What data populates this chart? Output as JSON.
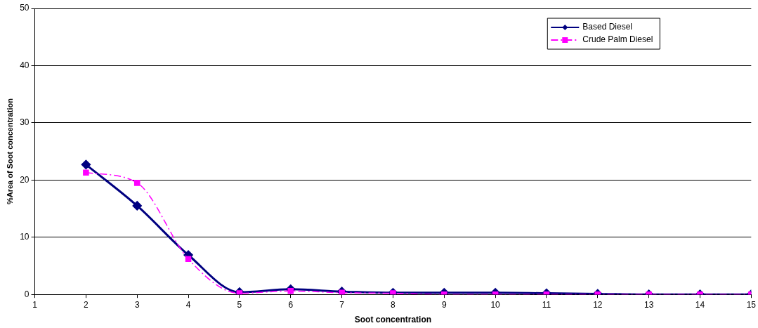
{
  "chart_data": {
    "type": "line",
    "xlabel": "Soot concentration",
    "ylabel": "%Area of Soot concentration",
    "x": [
      2,
      3,
      4,
      5,
      6,
      7,
      8,
      9,
      10,
      11,
      12,
      13,
      14,
      15
    ],
    "series": [
      {
        "name": "Based Diesel",
        "color": "#000080",
        "marker": "diamond",
        "line_style": "solid",
        "values": [
          22.7,
          15.5,
          6.9,
          0.4,
          0.9,
          0.5,
          0.3,
          0.3,
          0.3,
          0.2,
          0.1,
          0,
          0,
          0
        ]
      },
      {
        "name": "Crude Palm Diesel",
        "color": "#ff00ff",
        "marker": "square",
        "line_style": "dashed",
        "values": [
          21.3,
          19.5,
          6.2,
          0.2,
          0.6,
          0.3,
          0.2,
          0,
          0,
          0,
          0,
          0,
          0,
          0
        ]
      }
    ],
    "xlim": [
      1,
      15
    ],
    "xticks": [
      1,
      2,
      3,
      4,
      5,
      6,
      7,
      8,
      9,
      10,
      11,
      12,
      13,
      14,
      15
    ],
    "ylim": [
      0,
      50
    ],
    "yticks": [
      0,
      10,
      20,
      30,
      40,
      50
    ],
    "grid": "y",
    "legend": "top right"
  }
}
